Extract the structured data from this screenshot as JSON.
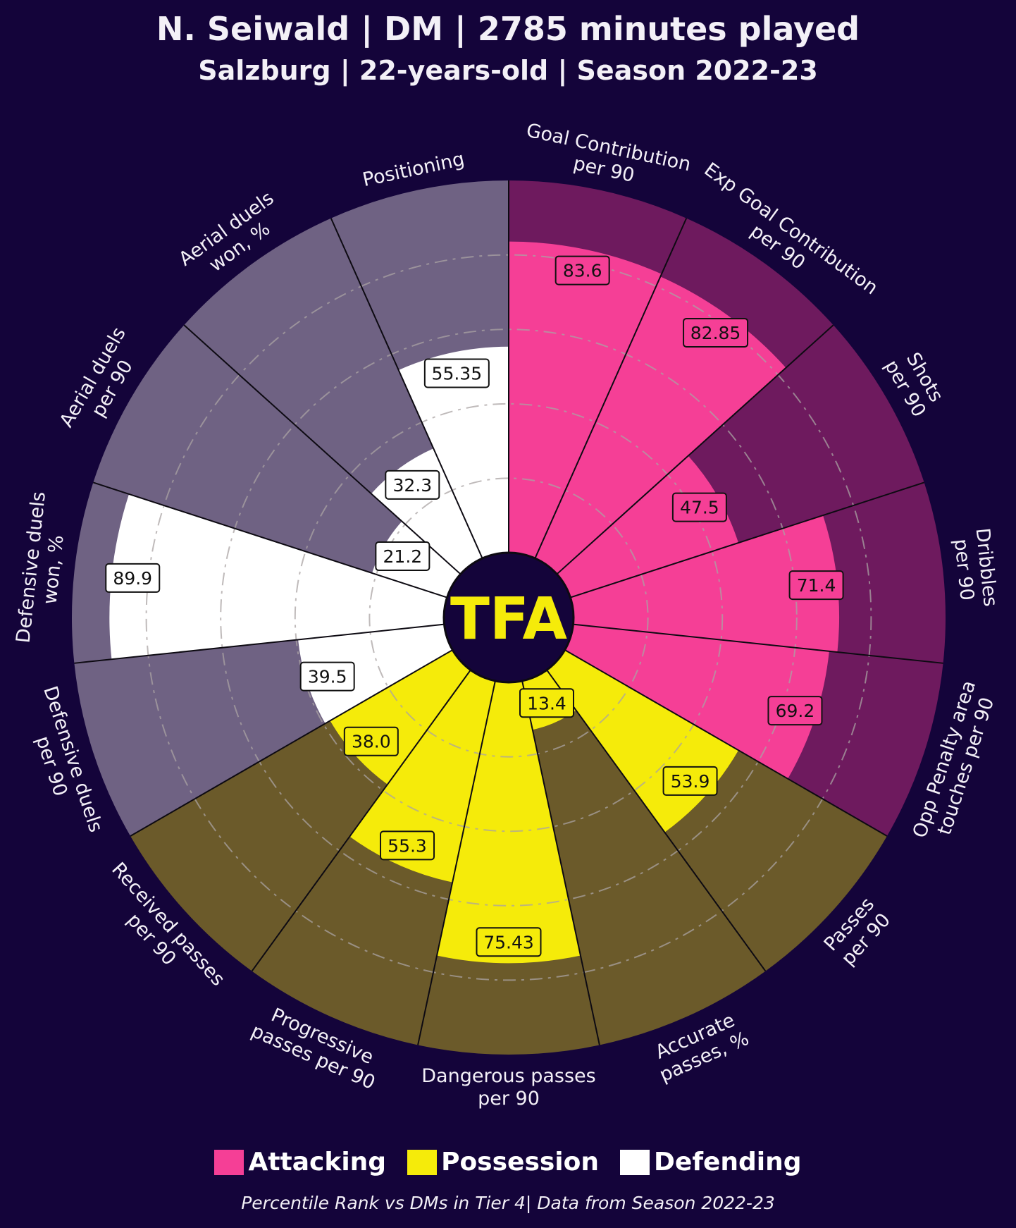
{
  "header": {
    "title": "N. Seiwald | DM | 2785 minutes played",
    "subtitle": "Salzburg | 22-years-old | Season 2022-23"
  },
  "logo_text": "TFA",
  "colors": {
    "background": "#14043a",
    "attacking": "#f53f96",
    "attacking_bg": "#6e1a5e",
    "possession": "#f5eb0a",
    "possession_bg": "#6b5a2a",
    "defending": "#ffffff",
    "defending_bg": "#6f6283",
    "logo_text": "#f5eb0a"
  },
  "legend": [
    {
      "label": "Attacking",
      "color": "#f53f96"
    },
    {
      "label": "Possession",
      "color": "#f5eb0a"
    },
    {
      "label": "Defending",
      "color": "#ffffff"
    }
  ],
  "footer": "Percentile Rank vs DMs in Tier 4| Data from Season 2022-23",
  "chart_data": {
    "type": "pizza",
    "value_range": [
      0,
      100
    ],
    "grid": "dash-dot rings at 20, 40, 60, 80",
    "metrics": [
      {
        "label": [
          "Goal Contribution",
          "per 90"
        ],
        "value": 83.6,
        "display": "83.6",
        "group": "Attacking"
      },
      {
        "label": [
          "Exp Goal Contribution",
          "per 90"
        ],
        "value": 82.85,
        "display": "82.85",
        "group": "Attacking"
      },
      {
        "label": [
          "Shots",
          "per 90"
        ],
        "value": 47.5,
        "display": "47.5",
        "group": "Attacking"
      },
      {
        "label": [
          "Dribbles",
          "per 90"
        ],
        "value": 71.4,
        "display": "71.4",
        "group": "Attacking"
      },
      {
        "label": [
          "Opp Penalty area",
          "touches per 90"
        ],
        "value": 69.2,
        "display": "69.2",
        "group": "Attacking"
      },
      {
        "label": [
          "Passes",
          "per 90"
        ],
        "value": 53.9,
        "display": "53.9",
        "group": "Possession"
      },
      {
        "label": [
          "Accurate",
          "passes, %"
        ],
        "value": 13.4,
        "display": "13.4",
        "group": "Possession"
      },
      {
        "label": [
          "Dangerous passes",
          "per 90"
        ],
        "value": 75.43,
        "display": "75.43",
        "group": "Possession"
      },
      {
        "label": [
          "Progressive",
          "passes per 90"
        ],
        "value": 55.3,
        "display": "55.3",
        "group": "Possession"
      },
      {
        "label": [
          "Received passes",
          "per 90"
        ],
        "value": 38.0,
        "display": "38.0",
        "group": "Possession"
      },
      {
        "label": [
          "Defensive duels",
          "per 90"
        ],
        "value": 39.5,
        "display": "39.5",
        "group": "Defending"
      },
      {
        "label": [
          "Defensive duels",
          "won, %"
        ],
        "value": 89.9,
        "display": "89.9",
        "group": "Defending"
      },
      {
        "label": [
          "Aerial duels",
          "per 90"
        ],
        "value": 21.2,
        "display": "21.2",
        "group": "Defending"
      },
      {
        "label": [
          "Aerial duels",
          "won, %"
        ],
        "value": 32.3,
        "display": "32.3",
        "group": "Defending"
      },
      {
        "label": [
          "Positioning"
        ],
        "value": 55.35,
        "display": "55.35",
        "group": "Defending"
      }
    ]
  }
}
